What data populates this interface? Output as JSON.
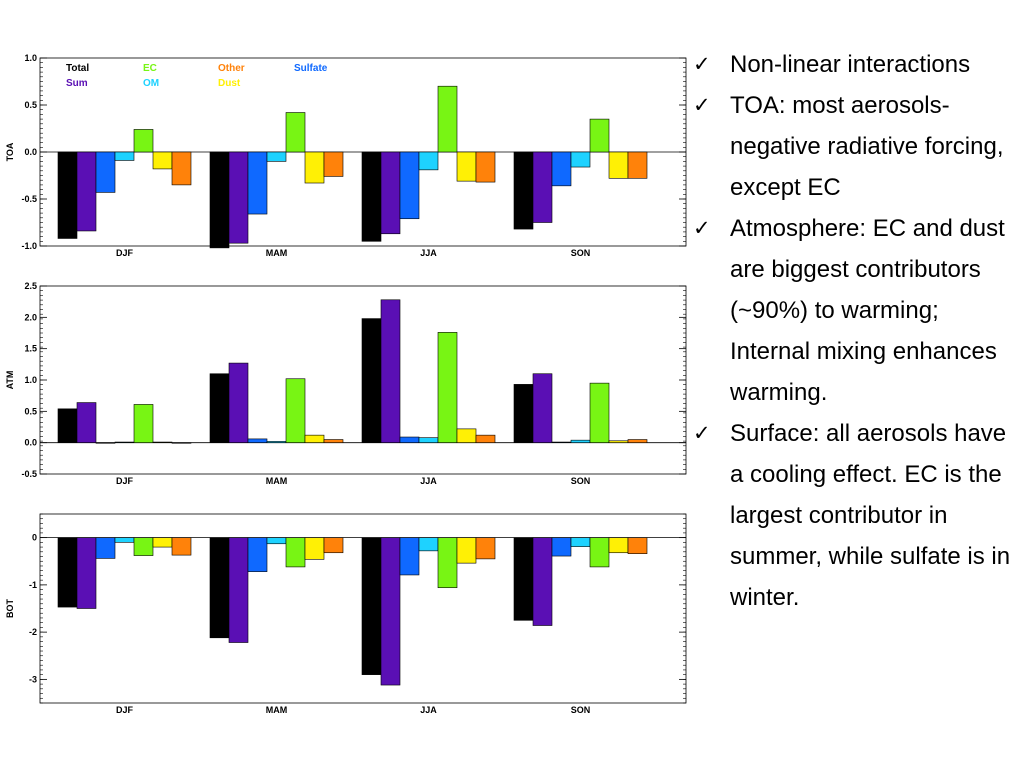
{
  "colors": {
    "Total": "#000000",
    "Sum": "#5a0fb4",
    "Sulfate": "#0f69ff",
    "OM": "#1ed2ff",
    "EC": "#78f514",
    "Dust": "#fff005",
    "Other": "#ff820a"
  },
  "legend": {
    "row1": [
      "Total",
      "EC",
      "Other",
      "Sulfate"
    ],
    "row2": [
      "Sum",
      "OM",
      "Dust"
    ]
  },
  "chart_data": [
    {
      "type": "bar",
      "ylabel": "TOA",
      "categories": [
        "DJF",
        "MAM",
        "JJA",
        "SON"
      ],
      "ylim": [
        -1.0,
        1.0
      ],
      "yticks": [
        1.0,
        0.5,
        0.0,
        -0.5,
        -1.0
      ],
      "ytick_labels": [
        "1.0",
        "0.5",
        "0.0",
        "-0.5",
        "-1.0"
      ],
      "series": [
        {
          "name": "Total",
          "values": [
            -0.92,
            -1.02,
            -0.95,
            -0.82
          ]
        },
        {
          "name": "Sum",
          "values": [
            -0.84,
            -0.97,
            -0.87,
            -0.75
          ]
        },
        {
          "name": "Sulfate",
          "values": [
            -0.43,
            -0.66,
            -0.71,
            -0.36
          ]
        },
        {
          "name": "OM",
          "values": [
            -0.09,
            -0.1,
            -0.19,
            -0.16
          ]
        },
        {
          "name": "EC",
          "values": [
            0.24,
            0.42,
            0.7,
            0.35
          ]
        },
        {
          "name": "Dust",
          "values": [
            -0.18,
            -0.33,
            -0.31,
            -0.28
          ]
        },
        {
          "name": "Other",
          "values": [
            -0.35,
            -0.26,
            -0.32,
            -0.28
          ]
        }
      ]
    },
    {
      "type": "bar",
      "ylabel": "ATM",
      "categories": [
        "DJF",
        "MAM",
        "JJA",
        "SON"
      ],
      "ylim": [
        -0.5,
        2.5
      ],
      "yticks": [
        2.5,
        2.0,
        1.5,
        1.0,
        0.5,
        0.0,
        -0.5
      ],
      "ytick_labels": [
        "2.5",
        "2.0",
        "1.5",
        "1.0",
        "0.5",
        "0.0",
        "-0.5"
      ],
      "series": [
        {
          "name": "Total",
          "values": [
            0.54,
            1.1,
            1.98,
            0.93
          ]
        },
        {
          "name": "Sum",
          "values": [
            0.64,
            1.27,
            2.28,
            1.1
          ]
        },
        {
          "name": "Sulfate",
          "values": [
            0.0,
            0.06,
            0.09,
            0.01
          ]
        },
        {
          "name": "OM",
          "values": [
            0.01,
            0.02,
            0.08,
            0.04
          ]
        },
        {
          "name": "EC",
          "values": [
            0.61,
            1.02,
            1.76,
            0.95
          ]
        },
        {
          "name": "Dust",
          "values": [
            0.01,
            0.12,
            0.22,
            0.03
          ]
        },
        {
          "name": "Other",
          "values": [
            0.0,
            0.05,
            0.12,
            0.05
          ]
        }
      ]
    },
    {
      "type": "bar",
      "ylabel": "BOT",
      "categories": [
        "DJF",
        "MAM",
        "JJA",
        "SON"
      ],
      "ylim": [
        -3.5,
        0.5
      ],
      "yticks": [
        0,
        -1,
        -2,
        -3
      ],
      "ytick_labels": [
        "0",
        "-1",
        "-2",
        "-3"
      ],
      "series": [
        {
          "name": "Total",
          "values": [
            -1.47,
            -2.12,
            -2.9,
            -1.75
          ]
        },
        {
          "name": "Sum",
          "values": [
            -1.5,
            -2.22,
            -3.12,
            -1.86
          ]
        },
        {
          "name": "Sulfate",
          "values": [
            -0.44,
            -0.72,
            -0.79,
            -0.39
          ]
        },
        {
          "name": "OM",
          "values": [
            -0.1,
            -0.13,
            -0.28,
            -0.19
          ]
        },
        {
          "name": "EC",
          "values": [
            -0.38,
            -0.62,
            -1.06,
            -0.62
          ]
        },
        {
          "name": "Dust",
          "values": [
            -0.2,
            -0.46,
            -0.54,
            -0.32
          ]
        },
        {
          "name": "Other",
          "values": [
            -0.37,
            -0.32,
            -0.45,
            -0.34
          ]
        }
      ]
    }
  ],
  "bullets": [
    "Non-linear interactions",
    "TOA: most aerosols- negative radiative forcing, except EC",
    "Atmosphere: EC and dust are biggest contributors (~90%) to warming; Internal mixing enhances warming.",
    "Surface: all aerosols have a cooling effect. EC is the largest contributor in summer, while sulfate is in winter."
  ],
  "check_mark": "✓"
}
